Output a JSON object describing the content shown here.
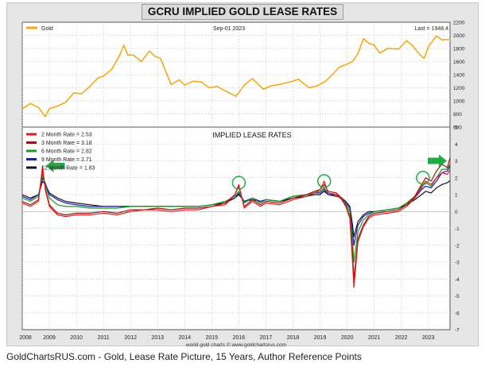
{
  "page_title": "GCRU IMPLIED GOLD LEASE RATES",
  "caption": "GoldChartsRUS.com - Gold, Lease Rate Picture, 15 Years, Author Reference Points",
  "colors": {
    "gold": "#f5a81a",
    "rate_2m": "#e31a1a",
    "rate_3m": "#8b1a1a",
    "rate_6m": "#1a9a1a",
    "rate_9m": "#1a1ac8",
    "rate_12m": "#111111",
    "arrow": "#22aa44",
    "circle": "#22aa44"
  },
  "chart_data": [
    {
      "type": "line",
      "title": "Gold",
      "date_label": "Sep-01 2023",
      "last_label": "Last = 1948.4",
      "legend": [
        {
          "name": "Gold"
        }
      ],
      "ylim": [
        600,
        2200
      ],
      "yticks": [
        600,
        800,
        1000,
        1200,
        1400,
        1600,
        1800,
        2000,
        2200
      ],
      "x_range": [
        2008.0,
        2023.8
      ],
      "series": [
        {
          "name": "Gold",
          "x": [
            2008.0,
            2008.3,
            2008.6,
            2008.85,
            2009.0,
            2009.3,
            2009.6,
            2009.9,
            2010.2,
            2010.5,
            2010.8,
            2011.0,
            2011.3,
            2011.6,
            2011.75,
            2011.9,
            2012.1,
            2012.4,
            2012.7,
            2012.9,
            2013.1,
            2013.3,
            2013.5,
            2013.8,
            2014.0,
            2014.3,
            2014.6,
            2014.9,
            2015.2,
            2015.5,
            2015.9,
            2016.2,
            2016.5,
            2016.9,
            2017.2,
            2017.5,
            2017.9,
            2018.2,
            2018.6,
            2018.9,
            2019.2,
            2019.5,
            2019.7,
            2020.0,
            2020.2,
            2020.4,
            2020.6,
            2020.8,
            2021.0,
            2021.2,
            2021.5,
            2021.9,
            2022.2,
            2022.4,
            2022.7,
            2022.85,
            2023.0,
            2023.3,
            2023.5,
            2023.8
          ],
          "values": [
            880,
            960,
            900,
            760,
            880,
            920,
            980,
            1120,
            1110,
            1220,
            1350,
            1380,
            1480,
            1700,
            1850,
            1700,
            1700,
            1600,
            1760,
            1680,
            1650,
            1450,
            1250,
            1320,
            1240,
            1300,
            1290,
            1200,
            1220,
            1150,
            1070,
            1240,
            1340,
            1180,
            1230,
            1250,
            1290,
            1330,
            1200,
            1230,
            1300,
            1420,
            1510,
            1560,
            1600,
            1720,
            1950,
            1880,
            1850,
            1730,
            1800,
            1790,
            1920,
            1850,
            1700,
            1650,
            1830,
            1990,
            1930,
            1940
          ]
        }
      ]
    },
    {
      "type": "line",
      "title": "IMPLIED LEASE RATES",
      "xlabel": "world gold charts © www.goldchartsrus.com",
      "ylim": [
        -7,
        5
      ],
      "yticks": [
        -7,
        -6,
        -5,
        -4,
        -3,
        -2,
        -1,
        0,
        1,
        2,
        3,
        4,
        5
      ],
      "x_range": [
        2008.0,
        2023.8
      ],
      "xticks": [
        "2008",
        "2009",
        "2010",
        "2011",
        "2012",
        "2013",
        "2014",
        "2015",
        "2016",
        "2017",
        "2018",
        "2019",
        "2020",
        "2021",
        "2022",
        "2023"
      ],
      "legend": [
        {
          "name": "2 Month Rate",
          "value": "2.53"
        },
        {
          "name": "3 Month Rate",
          "value": "3.18"
        },
        {
          "name": "6 Month Rate",
          "value": "2.82"
        },
        {
          "name": "9 Month Rate",
          "value": "2.71"
        },
        {
          "name": "12 Month Rate",
          "value": "1.83"
        }
      ],
      "x": [
        2008.0,
        2008.3,
        2008.6,
        2008.75,
        2008.85,
        2009.0,
        2009.3,
        2009.6,
        2010.0,
        2010.5,
        2011.0,
        2011.5,
        2012.0,
        2012.5,
        2013.0,
        2013.5,
        2014.0,
        2014.5,
        2015.0,
        2015.5,
        2015.85,
        2016.0,
        2016.2,
        2016.5,
        2016.8,
        2017.0,
        2017.5,
        2018.0,
        2018.5,
        2018.8,
        2019.0,
        2019.15,
        2019.3,
        2019.6,
        2019.8,
        2019.95,
        2020.1,
        2020.2,
        2020.25,
        2020.4,
        2020.6,
        2020.8,
        2021.0,
        2021.5,
        2021.9,
        2022.2,
        2022.5,
        2022.75,
        2022.9,
        2023.1,
        2023.3,
        2023.5,
        2023.7,
        2023.8
      ],
      "series": [
        {
          "name": "2 Month Rate",
          "values": [
            0.5,
            0.3,
            0.6,
            2.7,
            1.3,
            0.3,
            -0.2,
            -0.3,
            -0.2,
            -0.2,
            -0.1,
            -0.2,
            0.0,
            0.1,
            0.1,
            0.0,
            0.1,
            0.1,
            0.3,
            0.4,
            1.0,
            1.6,
            0.2,
            0.6,
            0.3,
            0.5,
            0.4,
            0.7,
            0.9,
            1.1,
            1.3,
            1.8,
            1.1,
            1.0,
            0.7,
            0.3,
            -0.4,
            -3.0,
            -4.5,
            -1.8,
            -0.9,
            -0.4,
            -0.2,
            -0.1,
            0.0,
            0.3,
            0.8,
            1.5,
            1.8,
            1.6,
            2.0,
            2.3,
            2.2,
            2.5
          ]
        },
        {
          "name": "3 Month Rate",
          "values": [
            0.6,
            0.4,
            0.7,
            2.5,
            1.4,
            0.4,
            -0.1,
            -0.2,
            -0.1,
            -0.1,
            0.0,
            -0.1,
            0.1,
            0.1,
            0.2,
            0.1,
            0.2,
            0.2,
            0.3,
            0.5,
            1.0,
            1.5,
            0.3,
            0.7,
            0.4,
            0.6,
            0.5,
            0.8,
            1.0,
            1.2,
            1.3,
            1.6,
            1.2,
            1.1,
            0.8,
            0.4,
            -0.3,
            -2.5,
            -4.0,
            -1.6,
            -0.8,
            -0.3,
            -0.1,
            0.0,
            0.1,
            0.4,
            0.9,
            1.6,
            2.0,
            1.8,
            2.4,
            2.8,
            2.6,
            3.18
          ]
        },
        {
          "name": "6 Month Rate",
          "values": [
            0.8,
            0.6,
            0.9,
            2.2,
            1.6,
            0.8,
            0.4,
            0.3,
            0.3,
            0.2,
            0.2,
            0.2,
            0.3,
            0.3,
            0.3,
            0.3,
            0.3,
            0.3,
            0.4,
            0.6,
            0.9,
            1.2,
            0.5,
            0.8,
            0.5,
            0.7,
            0.6,
            0.9,
            1.0,
            1.1,
            1.2,
            1.4,
            1.1,
            1.0,
            0.8,
            0.5,
            0.0,
            -1.8,
            -3.0,
            -1.2,
            -0.5,
            -0.2,
            0.0,
            0.1,
            0.2,
            0.5,
            0.9,
            1.4,
            1.7,
            1.5,
            2.0,
            2.5,
            2.5,
            2.82
          ]
        },
        {
          "name": "9 Month Rate",
          "values": [
            0.9,
            0.7,
            1.0,
            2.0,
            1.7,
            1.0,
            0.7,
            0.5,
            0.4,
            0.3,
            0.3,
            0.3,
            0.3,
            0.3,
            0.3,
            0.3,
            0.3,
            0.3,
            0.4,
            0.6,
            0.8,
            1.1,
            0.6,
            0.8,
            0.6,
            0.7,
            0.6,
            0.9,
            1.0,
            1.1,
            1.1,
            1.3,
            1.0,
            1.0,
            0.8,
            0.6,
            0.2,
            -1.2,
            -2.0,
            -0.8,
            -0.3,
            -0.1,
            0.0,
            0.1,
            0.2,
            0.5,
            0.8,
            1.3,
            1.5,
            1.4,
            1.8,
            2.3,
            2.4,
            2.71
          ]
        },
        {
          "name": "12 Month Rate",
          "values": [
            1.0,
            0.8,
            1.0,
            1.8,
            1.6,
            1.1,
            0.8,
            0.6,
            0.5,
            0.4,
            0.3,
            0.3,
            0.3,
            0.3,
            0.3,
            0.3,
            0.3,
            0.3,
            0.4,
            0.5,
            0.8,
            1.0,
            0.6,
            0.7,
            0.6,
            0.7,
            0.6,
            0.8,
            0.9,
            1.0,
            1.0,
            1.2,
            1.0,
            0.9,
            0.8,
            0.6,
            0.3,
            -0.8,
            -1.5,
            -0.6,
            -0.2,
            0.0,
            0.0,
            0.1,
            0.2,
            0.4,
            0.7,
            1.0,
            1.2,
            1.1,
            1.4,
            1.6,
            1.7,
            1.83
          ]
        }
      ],
      "annotations": [
        {
          "type": "arrow",
          "direction": "left",
          "x": 2008.75,
          "y": 2.7
        },
        {
          "type": "arrow",
          "direction": "right",
          "x": 2023.8,
          "y": 3.0
        },
        {
          "type": "circle",
          "x": 2016.0,
          "y": 1.7
        },
        {
          "type": "circle",
          "x": 2019.15,
          "y": 1.8
        },
        {
          "type": "circle",
          "x": 2022.8,
          "y": 2.0
        }
      ]
    }
  ]
}
